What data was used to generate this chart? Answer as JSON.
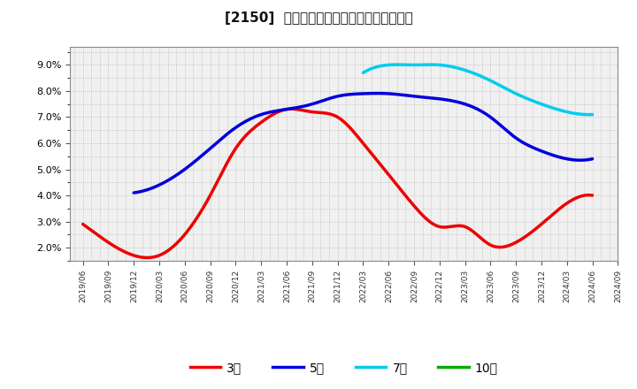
{
  "title": "[2150]  経常利益マージンの標準偏差の推移",
  "background_color": "#ffffff",
  "plot_background_color": "#f0f0f0",
  "ylim": [
    0.015,
    0.097
  ],
  "yticks": [
    0.02,
    0.03,
    0.04,
    0.05,
    0.06,
    0.07,
    0.08,
    0.09
  ],
  "series": {
    "3年": {
      "color": "#ee0000",
      "data_x": [
        0,
        1,
        2,
        3,
        4,
        5,
        6,
        7,
        8,
        9,
        10,
        11,
        12,
        13,
        14,
        15,
        16,
        17,
        18,
        19,
        20
      ],
      "data_y": [
        0.029,
        0.022,
        0.017,
        0.017,
        0.025,
        0.04,
        0.058,
        0.068,
        0.073,
        0.072,
        0.07,
        0.06,
        0.048,
        0.036,
        0.028,
        0.028,
        0.021,
        0.022,
        0.029,
        0.037,
        0.04
      ]
    },
    "5年": {
      "color": "#0000dd",
      "data_x": [
        2,
        3,
        4,
        5,
        6,
        7,
        8,
        9,
        10,
        11,
        12,
        13,
        14,
        15,
        16,
        17,
        18,
        19,
        20
      ],
      "data_y": [
        0.041,
        0.044,
        0.05,
        0.058,
        0.066,
        0.071,
        0.073,
        0.075,
        0.078,
        0.079,
        0.079,
        0.078,
        0.077,
        0.075,
        0.07,
        0.062,
        0.057,
        0.054,
        0.054
      ]
    },
    "7年": {
      "color": "#00ccee",
      "data_x": [
        11,
        12,
        13,
        14,
        15,
        16,
        17,
        18,
        19,
        20
      ],
      "data_y": [
        0.087,
        0.09,
        0.09,
        0.09,
        0.088,
        0.084,
        0.079,
        0.075,
        0.072,
        0.071
      ]
    },
    "10年": {
      "color": "#00aa00",
      "data_x": [],
      "data_y": []
    }
  },
  "legend_labels": [
    "3年",
    "5年",
    "7年",
    "10年"
  ],
  "legend_colors": [
    "#ee0000",
    "#0000dd",
    "#00ccee",
    "#00aa00"
  ],
  "x_tick_labels": [
    "2019/06",
    "2019/09",
    "2019/12",
    "2020/03",
    "2020/06",
    "2020/09",
    "2020/12",
    "2021/03",
    "2021/06",
    "2021/09",
    "2021/12",
    "2022/03",
    "2022/06",
    "2022/09",
    "2022/12",
    "2023/03",
    "2023/06",
    "2023/09",
    "2023/12",
    "2024/03",
    "2024/06",
    "2024/09"
  ]
}
